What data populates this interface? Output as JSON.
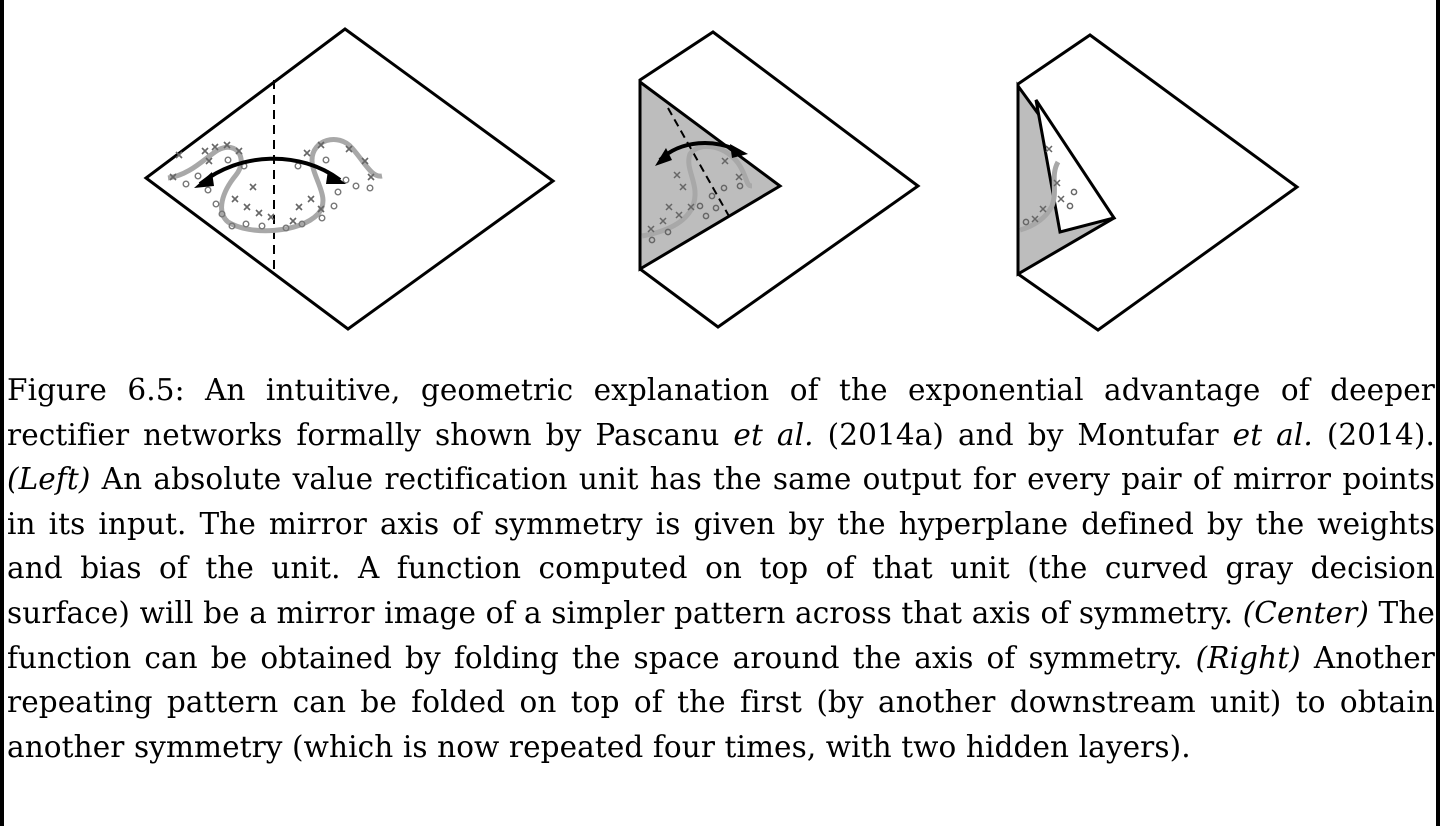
{
  "caption": {
    "label": "Figure 6.5:",
    "part1": " An intuitive, geometric explanation of the exponential advantage of deeper rectifier networks formally shown by Pascanu ",
    "etal1": "et al.",
    "part2": " (2014a) and by Montufar ",
    "etal2": "et al.",
    "part3": " (2014).",
    "left_tag": "(Left)",
    "left_text": " An absolute value rectification unit has the same output for every pair of mirror points in its input. The mirror axis of symmetry is given by the hyperplane defined by the weights and bias of the unit. A function computed on top of that unit (the curved gray decision surface) will be a mirror image of a simpler pattern across that axis of symmetry. ",
    "center_tag": "(Center)",
    "center_text": " The function can be obtained by folding the space around the axis of symmetry. ",
    "right_tag": "(Right)",
    "right_text": " Another repeating pattern can be folded on top of the first (by another downstream unit) to obtain another symmetry (which is now repeated four times, with two hidden layers)."
  },
  "colors": {
    "ink": "#000000",
    "fold_fill": "#bdbdbd",
    "curve": "#a6a6a6",
    "marker": "#777777"
  }
}
